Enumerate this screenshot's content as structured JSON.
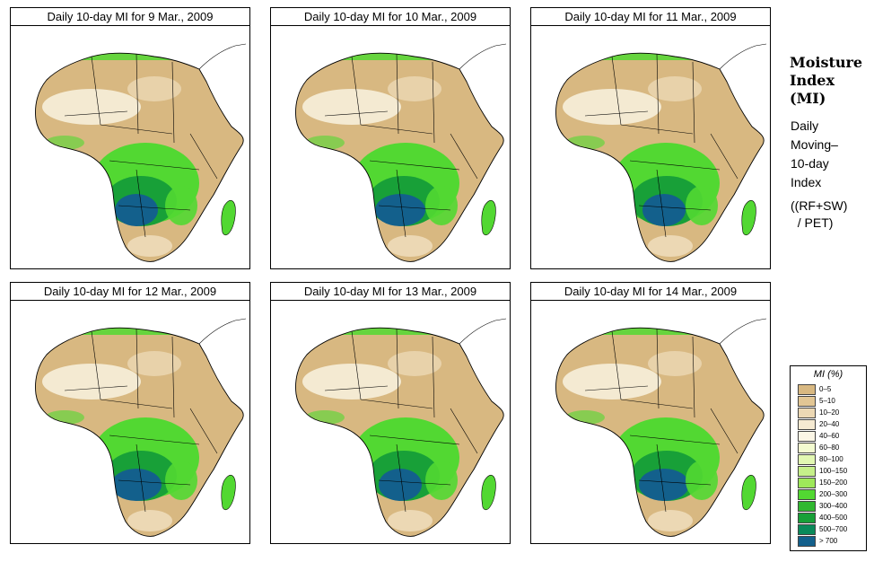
{
  "panels": [
    {
      "title": "Daily 10-day MI for  9 Mar., 2009"
    },
    {
      "title": "Daily 10-day MI for  10 Mar., 2009"
    },
    {
      "title": "Daily 10-day MI for  11 Mar., 2009"
    },
    {
      "title": "Daily 10-day MI for  12 Mar., 2009"
    },
    {
      "title": "Daily 10-day MI for  13 Mar., 2009"
    },
    {
      "title": "Daily 10-day MI for  14 Mar., 2009"
    }
  ],
  "side": {
    "title_lines": [
      "Moisture",
      "Index",
      "(MI)"
    ],
    "desc_lines": [
      "Daily",
      "Moving–",
      "10-day",
      "Index"
    ],
    "formula_lines": [
      "((RF+SW)",
      "  / PET)"
    ]
  },
  "legend": {
    "title": "MI (%)",
    "items": [
      {
        "label": "0–5",
        "color": "#d8b881"
      },
      {
        "label": "5–10",
        "color": "#e2c694"
      },
      {
        "label": "10–20",
        "color": "#ecd8b4"
      },
      {
        "label": "20–40",
        "color": "#f5ead2"
      },
      {
        "label": "40–60",
        "color": "#fbf6e6"
      },
      {
        "label": "60–80",
        "color": "#f3fbd0"
      },
      {
        "label": "80–100",
        "color": "#e2f8b2"
      },
      {
        "label": "100–150",
        "color": "#c6f08a"
      },
      {
        "label": "150–200",
        "color": "#9ee85a"
      },
      {
        "label": "200–300",
        "color": "#52d832"
      },
      {
        "label": "300–400",
        "color": "#30b830"
      },
      {
        "label": "400–500",
        "color": "#18a038"
      },
      {
        "label": "500–700",
        "color": "#0a8a5a"
      },
      {
        "label": "> 700",
        "color": "#13608c"
      }
    ]
  },
  "colors": {
    "desert": "#d8b881",
    "dry": "#ecd8b4",
    "sparse": "#fbf6e6",
    "green": "#52d832",
    "dark_green": "#18a038",
    "wet": "#13608c",
    "border": "#000000"
  }
}
